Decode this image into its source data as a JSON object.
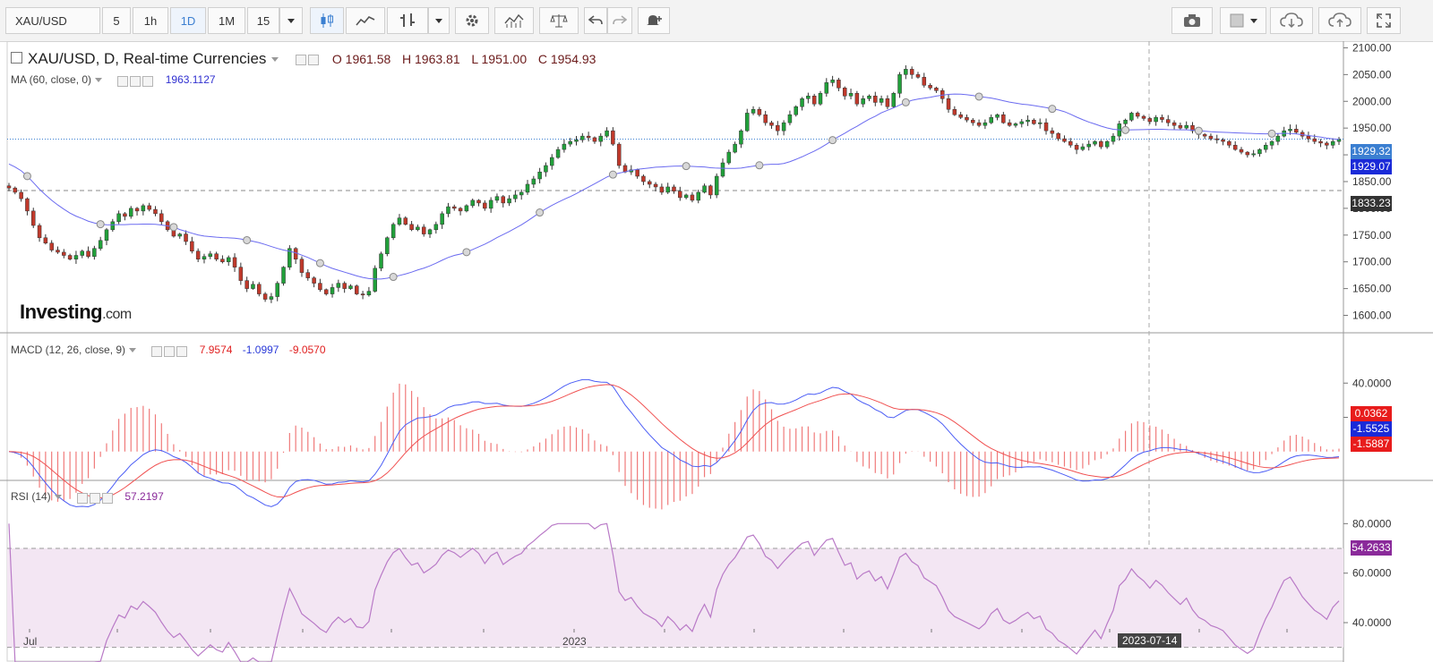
{
  "toolbar": {
    "symbol": "XAU/USD",
    "intervals": [
      "5",
      "1h",
      "1D",
      "1M",
      "15"
    ],
    "active_interval": "1D"
  },
  "main_legend": {
    "title": "XAU/USD, D, Real-time Currencies",
    "open": "O 1961.58",
    "high": "H 1963.81",
    "low": "L 1951.00",
    "close": "C 1954.93"
  },
  "ma_legend": {
    "label": "MA (60, close, 0)",
    "value": "1963.1127"
  },
  "macd_legend": {
    "label": "MACD (12, 26, close, 9)",
    "hist": "7.9574",
    "macd": "-1.0997",
    "signal": "-9.0570"
  },
  "rsi_legend": {
    "label": "RSI (14)",
    "value": "57.2197"
  },
  "price_tags": {
    "last": "1929.32",
    "ma": "1929.07",
    "hline": "1833.23"
  },
  "macd_tags": {
    "hist": "0.0362",
    "macd": "-1.5525",
    "signal": "-1.5887"
  },
  "rsi_tag": "54.2633",
  "logo": {
    "main": "Investing",
    "suffix": ".com"
  },
  "crosshair_date": "2023-07-14",
  "colors": {
    "up": "#21a03a",
    "down": "#c0392b",
    "ma": "#6b6bf0",
    "macd": "#4a5cf5",
    "signal": "#f05050",
    "rsi": "#b97ac7",
    "rsi_band": "#f3e6f3",
    "accent": "#3b7fd1"
  },
  "chart_data": [
    {
      "type": "candlestick",
      "title": "XAU/USD, D, Real-time Currencies",
      "x_labels": [
        "Jul",
        "2023"
      ],
      "y_ticks": [
        "1600.00",
        "1650.00",
        "1700.00",
        "1750.00",
        "1800.00",
        "1850.00",
        "1900.00",
        "1950.00",
        "2000.00",
        "2050.00",
        "2100.00"
      ],
      "ylim": [
        1580,
        2115
      ],
      "price_path": [
        1838,
        1830,
        1818,
        1795,
        1768,
        1745,
        1735,
        1722,
        1718,
        1712,
        1705,
        1712,
        1720,
        1710,
        1725,
        1740,
        1760,
        1775,
        1790,
        1785,
        1800,
        1795,
        1805,
        1798,
        1790,
        1775,
        1760,
        1748,
        1752,
        1738,
        1720,
        1705,
        1710,
        1715,
        1705,
        1700,
        1708,
        1690,
        1665,
        1650,
        1658,
        1640,
        1630,
        1635,
        1660,
        1690,
        1725,
        1705,
        1680,
        1670,
        1660,
        1648,
        1640,
        1652,
        1660,
        1650,
        1655,
        1640,
        1638,
        1645,
        1688,
        1715,
        1745,
        1770,
        1782,
        1770,
        1760,
        1765,
        1752,
        1760,
        1770,
        1790,
        1803,
        1800,
        1795,
        1805,
        1815,
        1810,
        1800,
        1815,
        1822,
        1810,
        1818,
        1825,
        1830,
        1845,
        1855,
        1868,
        1880,
        1895,
        1910,
        1920,
        1925,
        1928,
        1935,
        1932,
        1925,
        1935,
        1945,
        1920,
        1880,
        1868,
        1872,
        1860,
        1850,
        1845,
        1840,
        1830,
        1840,
        1832,
        1820,
        1825,
        1815,
        1830,
        1842,
        1825,
        1860,
        1885,
        1905,
        1920,
        1945,
        1978,
        1985,
        1975,
        1960,
        1955,
        1945,
        1960,
        1975,
        1990,
        2005,
        2010,
        1995,
        2015,
        2035,
        2040,
        2025,
        2010,
        2015,
        1995,
        2005,
        2010,
        1998,
        2005,
        1990,
        2015,
        2050,
        2060,
        2050,
        2045,
        2030,
        2025,
        2020,
        2005,
        1985,
        1975,
        1970,
        1965,
        1960,
        1955,
        1960,
        1970,
        1975,
        1960,
        1955,
        1958,
        1962,
        1965,
        1958,
        1960,
        1945,
        1940,
        1930,
        1925,
        1918,
        1910,
        1915,
        1920,
        1925,
        1915,
        1925,
        1935,
        1958,
        1965,
        1978,
        1972,
        1968,
        1962,
        1970,
        1966,
        1960,
        1955,
        1950,
        1955,
        1945,
        1938,
        1935,
        1930,
        1928,
        1925,
        1918,
        1910,
        1905,
        1900,
        1902,
        1910,
        1918,
        1925,
        1935,
        1945,
        1948,
        1942,
        1935,
        1930,
        1925,
        1922,
        1918,
        1925,
        1929
      ]
    },
    {
      "type": "line",
      "title": "MACD (12, 26, close, 9)",
      "y_ticks": [
        "20.0000",
        "40.0000"
      ],
      "ylim": [
        -40,
        42
      ]
    },
    {
      "type": "line",
      "title": "RSI (14)",
      "y_ticks": [
        "40.0000",
        "60.0000",
        "80.0000"
      ],
      "ylim": [
        22,
        82
      ],
      "band": [
        30,
        70
      ]
    }
  ]
}
